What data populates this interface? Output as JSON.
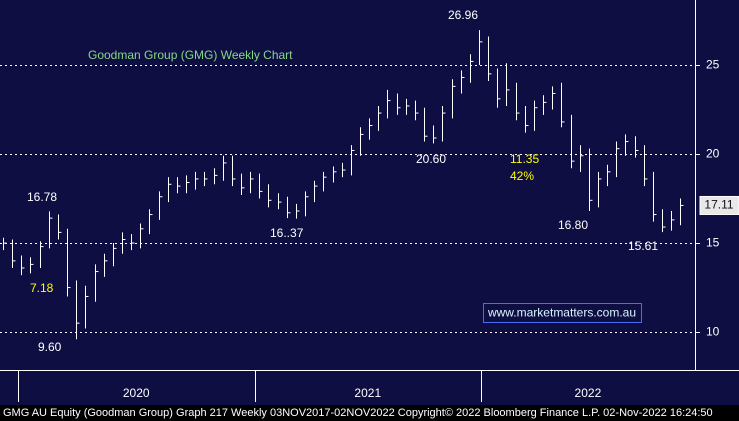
{
  "chart_data": {
    "type": "ohlc",
    "title": "Goodman Group (GMG) Weekly Chart",
    "title_color": "#86d886",
    "footer": "GMG AU Equity (Goodman Group) Graph 217  Weekly 03NOV2017-02NOV2022  Copyright© 2022 Bloomberg Finance L.P.   02-Nov-2022 16:24:50",
    "watermark": "www.marketmatters.com.au",
    "color": "#ffffff",
    "background": "#0e0e42",
    "grid": true,
    "ylim": [
      7.87,
      28.65
    ],
    "yticks": [
      10,
      15,
      20,
      25
    ],
    "xlim": [
      -0.33,
      75.6
    ],
    "xticks": [
      1.6,
      27.5,
      52.2
    ],
    "year_labels": [
      "2020",
      "2021",
      "2022"
    ],
    "high": [
      15.3,
      15.2,
      14.3,
      14.2,
      15.1,
      16.78,
      16.6,
      15.8,
      12.9,
      12.6,
      13.8,
      14.4,
      15.0,
      15.6,
      15.5,
      16.1,
      16.9,
      17.9,
      18.7,
      18.7,
      18.8,
      19.0,
      19.0,
      19.2,
      19.9,
      19.9,
      18.9,
      19.0,
      18.9,
      18.3,
      17.8,
      17.6,
      17.2,
      17.9,
      18.5,
      19.0,
      19.3,
      19.5,
      20.5,
      21.5,
      22.0,
      22.7,
      23.6,
      23.4,
      23.1,
      23.0,
      22.6,
      21.6,
      22.7,
      24.2,
      24.7,
      25.6,
      26.96,
      26.6,
      24.8,
      25.1,
      24.0,
      22.7,
      23.0,
      23.3,
      23.8,
      24.0,
      22.2,
      20.5,
      20.3,
      19.0,
      19.4,
      20.7,
      21.1,
      21.0,
      20.5,
      19.0,
      16.9,
      16.8,
      17.5
    ],
    "low": [
      14.6,
      13.6,
      13.2,
      13.3,
      13.6,
      14.7,
      15.2,
      12.0,
      9.6,
      10.2,
      11.7,
      13.1,
      13.7,
      14.4,
      14.6,
      14.7,
      15.5,
      16.3,
      17.3,
      17.8,
      17.8,
      18.0,
      18.2,
      18.3,
      18.5,
      18.2,
      17.7,
      17.8,
      17.5,
      17.0,
      16.9,
      16.4,
      16.37,
      16.5,
      17.3,
      17.9,
      18.4,
      18.7,
      18.8,
      19.9,
      20.8,
      21.3,
      22.0,
      22.2,
      22.2,
      21.9,
      20.7,
      20.6,
      20.7,
      22.0,
      23.4,
      24.0,
      25.0,
      24.1,
      22.6,
      22.7,
      21.9,
      21.2,
      21.3,
      22.2,
      22.5,
      21.5,
      19.2,
      19.0,
      16.8,
      17.0,
      18.2,
      18.7,
      19.9,
      19.8,
      18.2,
      16.2,
      15.61,
      15.7,
      16.0
    ],
    "close": [
      15.0,
      14.0,
      13.6,
      13.8,
      14.8,
      16.4,
      15.6,
      12.5,
      10.5,
      12.0,
      13.4,
      14.0,
      14.7,
      15.2,
      15.0,
      15.8,
      16.6,
      17.6,
      18.3,
      18.2,
      18.4,
      18.6,
      18.6,
      18.8,
      19.5,
      18.6,
      18.1,
      18.6,
      17.9,
      17.4,
      17.3,
      16.7,
      16.8,
      17.6,
      18.2,
      18.7,
      19.0,
      19.1,
      20.2,
      21.1,
      21.6,
      22.3,
      23.0,
      22.6,
      22.7,
      22.3,
      21.0,
      20.9,
      22.3,
      23.8,
      24.3,
      25.2,
      26.3,
      24.5,
      23.1,
      23.6,
      22.3,
      21.6,
      22.6,
      22.9,
      23.4,
      21.8,
      19.6,
      19.9,
      17.4,
      18.6,
      19.0,
      20.3,
      20.7,
      20.2,
      18.6,
      16.6,
      15.9,
      16.3,
      17.11
    ],
    "annotations": [
      {
        "text": "26.96",
        "color": "#ffffff"
      },
      {
        "text": "16.78",
        "color": "#ffffff"
      },
      {
        "text": "7.18",
        "color": "#ffff00"
      },
      {
        "text": "9.60",
        "color": "#ffffff"
      },
      {
        "text": "16..37",
        "color": "#ffffff"
      },
      {
        "text": "20.60",
        "color": "#ffffff"
      },
      {
        "text": "11.35",
        "color": "#ffff00"
      },
      {
        "text": "42%",
        "color": "#ffff00"
      },
      {
        "text": "16.80",
        "color": "#ffffff"
      },
      {
        "text": "15.61",
        "color": "#ffffff"
      }
    ]
  }
}
